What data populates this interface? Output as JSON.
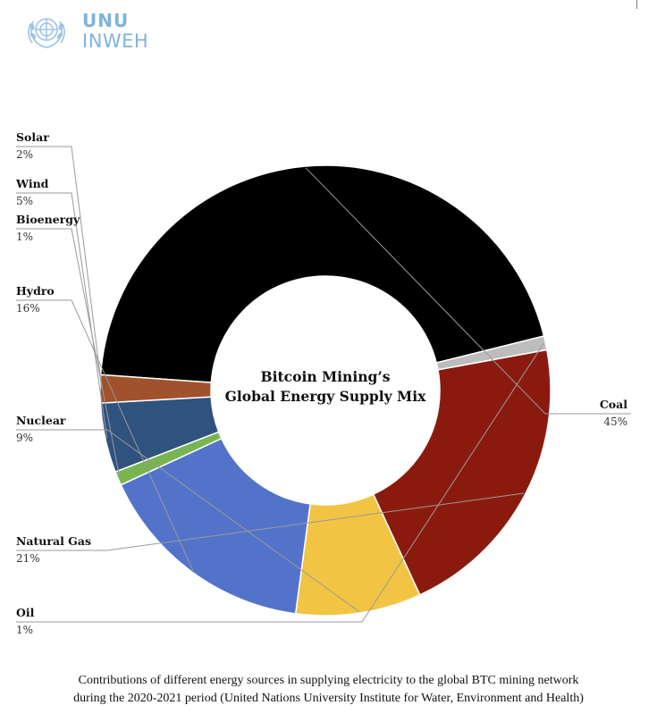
{
  "logo": {
    "line1": "UNU",
    "line2": "INWEH",
    "emblem_icon": "un-emblem-icon",
    "color": "#7fb3e0"
  },
  "chart_data": {
    "type": "pie",
    "donut": true,
    "title_lines": [
      "Bitcoin Mining’s",
      "Global Energy Supply Mix"
    ],
    "slices": [
      {
        "name": "Coal",
        "value": 45,
        "label": "45%",
        "color": "#000000"
      },
      {
        "name": "Oil",
        "value": 1,
        "label": "1%",
        "color": "#bdbdbd"
      },
      {
        "name": "Natural Gas",
        "value": 21,
        "label": "21%",
        "color": "#8b1a0e"
      },
      {
        "name": "Nuclear",
        "value": 9,
        "label": "9%",
        "color": "#f2c443"
      },
      {
        "name": "Hydro",
        "value": 16,
        "label": "16%",
        "color": "#5273c9"
      },
      {
        "name": "Bioenergy",
        "value": 1,
        "label": "1%",
        "color": "#79b452"
      },
      {
        "name": "Wind",
        "value": 5,
        "label": "5%",
        "color": "#2f527f"
      },
      {
        "name": "Solar",
        "value": 2,
        "label": "2%",
        "color": "#a0522d"
      }
    ]
  },
  "caption": {
    "line1": "Contributions of different energy sources in supplying electricity to the global BTC mining network",
    "line2": "during the 2020-2021 period (United Nations University Institute for Water, Environment and Health)"
  }
}
